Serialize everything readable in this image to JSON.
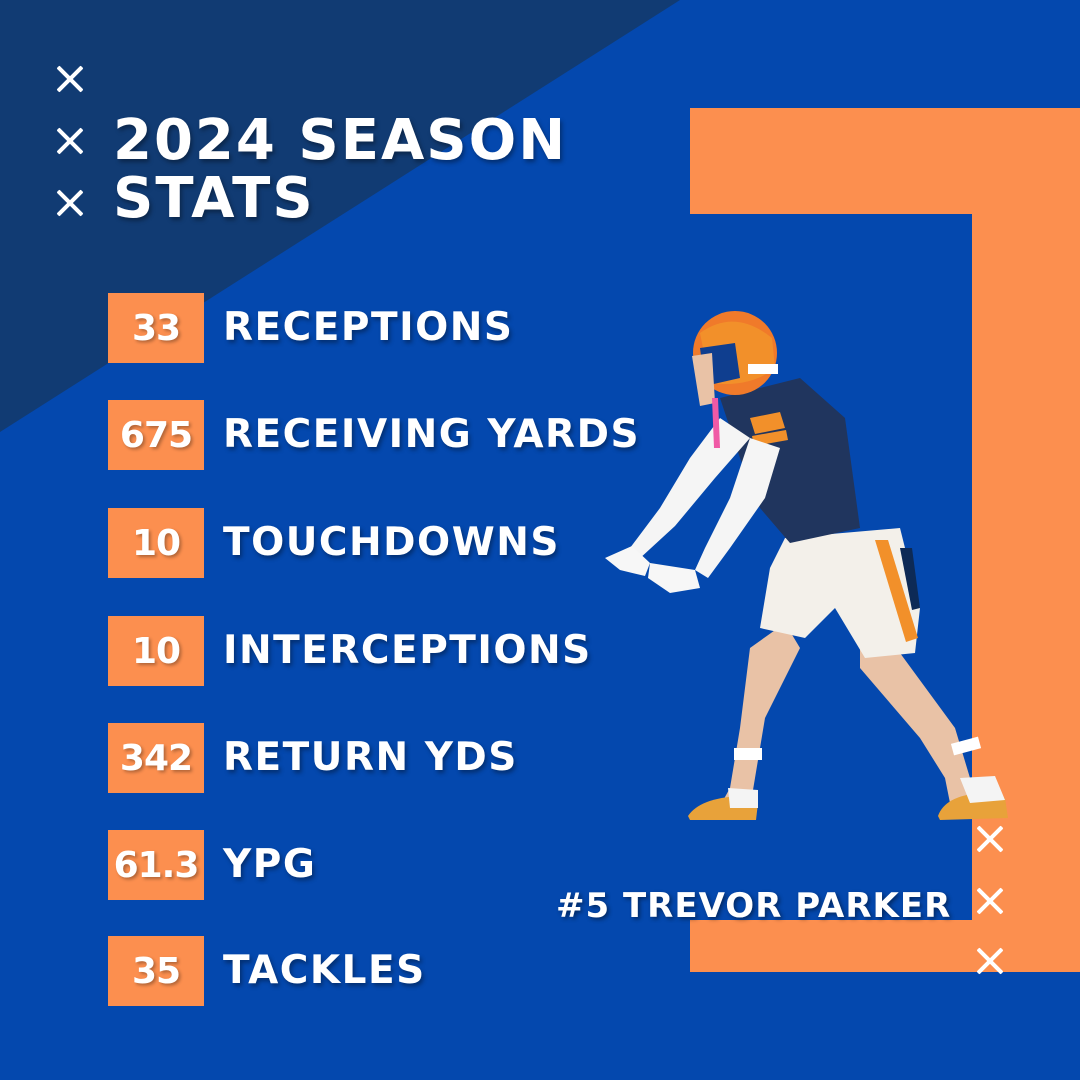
{
  "colors": {
    "background_blue": "#0448ae",
    "diagonal_navy": "#113b73",
    "accent_orange": "#fc8f4f",
    "text_white": "#ffffff"
  },
  "decorations": {
    "top_left_marks": [
      "x-icon",
      "x-icon",
      "x-icon"
    ],
    "bottom_right_marks": [
      "x-icon",
      "x-icon",
      "x-icon"
    ]
  },
  "title": {
    "line1": "2024 SEASON",
    "line2": "STATS"
  },
  "stats": [
    {
      "value": "33",
      "label": "RECEPTIONS"
    },
    {
      "value": "675",
      "label": "RECEIVING YARDS"
    },
    {
      "value": "10",
      "label": "TOUCHDOWNS"
    },
    {
      "value": "10",
      "label": "INTERCEPTIONS"
    },
    {
      "value": "342",
      "label": "RETURN YDS"
    },
    {
      "value": "61.3",
      "label": "YPG"
    },
    {
      "value": "35",
      "label": "TACKLES"
    }
  ],
  "player": {
    "name": "#5 TREVOR PARKER"
  }
}
